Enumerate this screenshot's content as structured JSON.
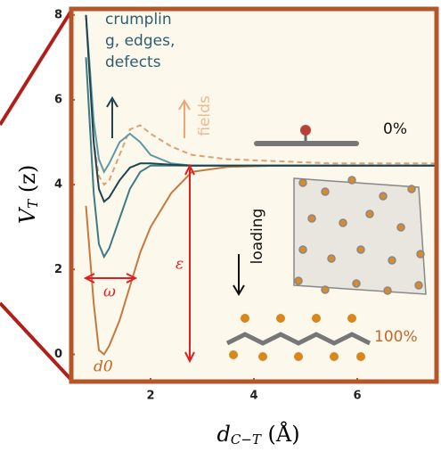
{
  "chart_data": {
    "type": "line",
    "xlabel": {
      "main": "d",
      "sub": "C−T",
      "rest": " (Å)"
    },
    "ylabel": {
      "main": "V",
      "sub": "T",
      "rest": " (z)"
    },
    "xlim": [
      0.5,
      7.5
    ],
    "ylim": [
      -0.6,
      8.1
    ],
    "xticks": [
      2,
      4,
      6
    ],
    "yticks": [
      0,
      2,
      4,
      6,
      8
    ],
    "x": [
      0.75,
      0.9,
      1.0,
      1.1,
      1.2,
      1.4,
      1.6,
      1.8,
      2.0,
      2.4,
      2.8,
      3.5,
      4.5,
      5.5,
      7.5
    ],
    "series": [
      {
        "color": "#c8773f",
        "line_style": "solid",
        "values": [
          3.5,
          1.2,
          0.1,
          0.0,
          0.2,
          0.8,
          1.6,
          2.4,
          3.0,
          3.8,
          4.3,
          4.42,
          4.45,
          4.45,
          4.45
        ]
      },
      {
        "color": "#3d7a86",
        "line_style": "solid",
        "values": [
          7.0,
          3.8,
          2.6,
          2.3,
          2.5,
          3.2,
          3.9,
          4.3,
          4.45,
          4.45,
          4.45,
          4.45,
          4.45,
          4.45,
          4.45
        ]
      },
      {
        "color": "#e0a070",
        "line_style": "dashed",
        "values": [
          8.0,
          5.0,
          4.2,
          4.0,
          4.1,
          4.7,
          5.3,
          5.4,
          5.2,
          4.9,
          4.7,
          4.6,
          4.55,
          4.5,
          4.5
        ]
      },
      {
        "color": "#5f98a4",
        "line_style": "solid",
        "values": [
          8.0,
          5.5,
          4.6,
          4.3,
          4.5,
          5.0,
          5.2,
          5.0,
          4.7,
          4.5,
          4.45,
          4.45,
          4.45,
          4.45,
          4.45
        ]
      },
      {
        "color": "#1f4450",
        "line_style": "solid",
        "values": [
          8.0,
          5.0,
          3.9,
          3.6,
          3.7,
          4.1,
          4.4,
          4.5,
          4.5,
          4.47,
          4.45,
          4.45,
          4.45,
          4.45,
          4.45
        ]
      }
    ],
    "annotations": [
      "crumplin",
      "g, edges,",
      "defects",
      "fields",
      "0%",
      "loading",
      "100%",
      "ε",
      "ω",
      "d0"
    ]
  }
}
